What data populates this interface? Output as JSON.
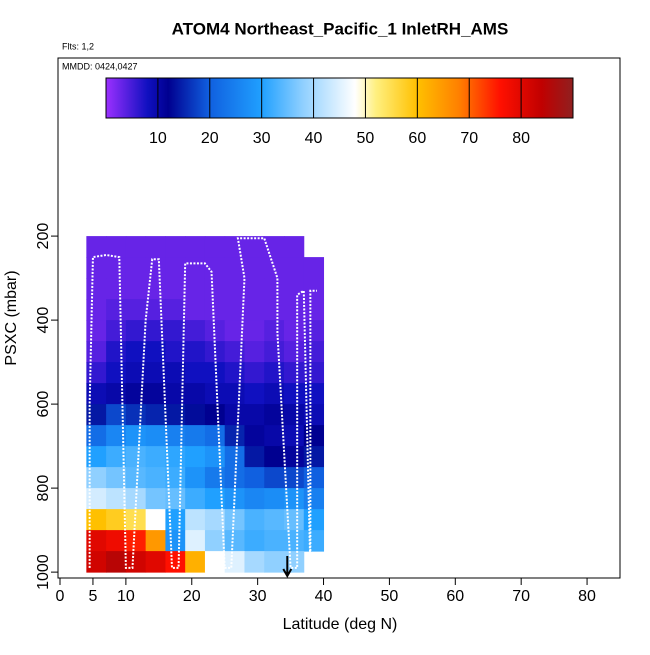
{
  "chart_data": {
    "type": "heatmap",
    "title": "ATOM4 Northeast_Pacific_1 InletRH_AMS",
    "subtitle": "Flts: 1,2",
    "annotation": "MMDD: 0424,0427",
    "x_label": "Latitude (deg N)",
    "y_label": "PSXC (mbar)",
    "xlim": [
      0,
      85
    ],
    "xticks": [
      0,
      5,
      10,
      20,
      30,
      40,
      50,
      60,
      70,
      80
    ],
    "ylim": [
      1014,
      -224
    ],
    "yticks": [
      200,
      400,
      600,
      800,
      1000
    ],
    "x_edges": [
      4,
      7,
      10,
      13,
      16,
      19,
      22,
      25,
      28,
      31,
      34,
      37,
      40
    ],
    "y_edges": [
      200,
      250,
      300,
      350,
      400,
      450,
      500,
      550,
      600,
      650,
      700,
      750,
      800,
      850,
      900,
      950,
      1000
    ],
    "values": [
      [
        3,
        3,
        3,
        3,
        3,
        3,
        3,
        3,
        3,
        3,
        3,
        null
      ],
      [
        3,
        3,
        3,
        3,
        3,
        3,
        3,
        3,
        3,
        3,
        3,
        3
      ],
      [
        3,
        3,
        3,
        3,
        3,
        3,
        3,
        3,
        3,
        3,
        3,
        3
      ],
      [
        3,
        4,
        4,
        4,
        4,
        3,
        3,
        3,
        3,
        3,
        3,
        3
      ],
      [
        3,
        5,
        6,
        6,
        6,
        5,
        4,
        3,
        3,
        4,
        3,
        4
      ],
      [
        4,
        7,
        8,
        8,
        7,
        7,
        6,
        5,
        4,
        5,
        4,
        5
      ],
      [
        6,
        8,
        9,
        9,
        9,
        8,
        8,
        7,
        6,
        7,
        6,
        6
      ],
      [
        9,
        10,
        11,
        11,
        10,
        10,
        9,
        9,
        8,
        9,
        8,
        8
      ],
      [
        14,
        18,
        16,
        15,
        14,
        13,
        12,
        10,
        10,
        11,
        10,
        9
      ],
      [
        22,
        26,
        28,
        27,
        25,
        24,
        22,
        15,
        11,
        10,
        9,
        12
      ],
      [
        30,
        32,
        33,
        32,
        31,
        30,
        28,
        22,
        14,
        12,
        11,
        14
      ],
      [
        38,
        36,
        34,
        33,
        32,
        28,
        24,
        22,
        20,
        18,
        18,
        20
      ],
      [
        44,
        42,
        40,
        36,
        35,
        32,
        30,
        28,
        26,
        27,
        28,
        25
      ],
      [
        60,
        58,
        55,
        48,
        30,
        42,
        40,
        36,
        33,
        34,
        35,
        30
      ],
      [
        80,
        78,
        75,
        65,
        28,
        45,
        38,
        34,
        32,
        33,
        33,
        32
      ],
      [
        82,
        85,
        82,
        80,
        76,
        62,
        48,
        45,
        40,
        38,
        38,
        null
      ]
    ],
    "colorbar": {
      "lim": [
        0,
        90
      ],
      "ticks": [
        10,
        20,
        30,
        40,
        50,
        60,
        70,
        80
      ]
    },
    "colorscale": [
      [
        0,
        "#9b30ff"
      ],
      [
        8,
        "#1010c0"
      ],
      [
        12,
        "#000090"
      ],
      [
        20,
        "#1060e0"
      ],
      [
        30,
        "#20a0ff"
      ],
      [
        38,
        "#90d0ff"
      ],
      [
        48,
        "#ffffff"
      ],
      [
        52,
        "#fff080"
      ],
      [
        60,
        "#ffc000"
      ],
      [
        68,
        "#ff8000"
      ],
      [
        76,
        "#ff1000"
      ],
      [
        84,
        "#c00000"
      ],
      [
        90,
        "#902020"
      ]
    ],
    "track": {
      "color": "#ffffff",
      "x": [
        4.5,
        4.5,
        5,
        7,
        9,
        10,
        11,
        13,
        14,
        15,
        17,
        18,
        19,
        22,
        23,
        25,
        26,
        28,
        27,
        31,
        33,
        33,
        35,
        36,
        36,
        37,
        38,
        38,
        39
      ],
      "y": [
        990,
        600,
        250,
        245,
        250,
        990,
        990,
        400,
        255,
        255,
        990,
        990,
        265,
        265,
        285,
        990,
        990,
        300,
        205,
        205,
        300,
        430,
        990,
        990,
        340,
        330,
        990,
        330,
        330
      ]
    }
  }
}
